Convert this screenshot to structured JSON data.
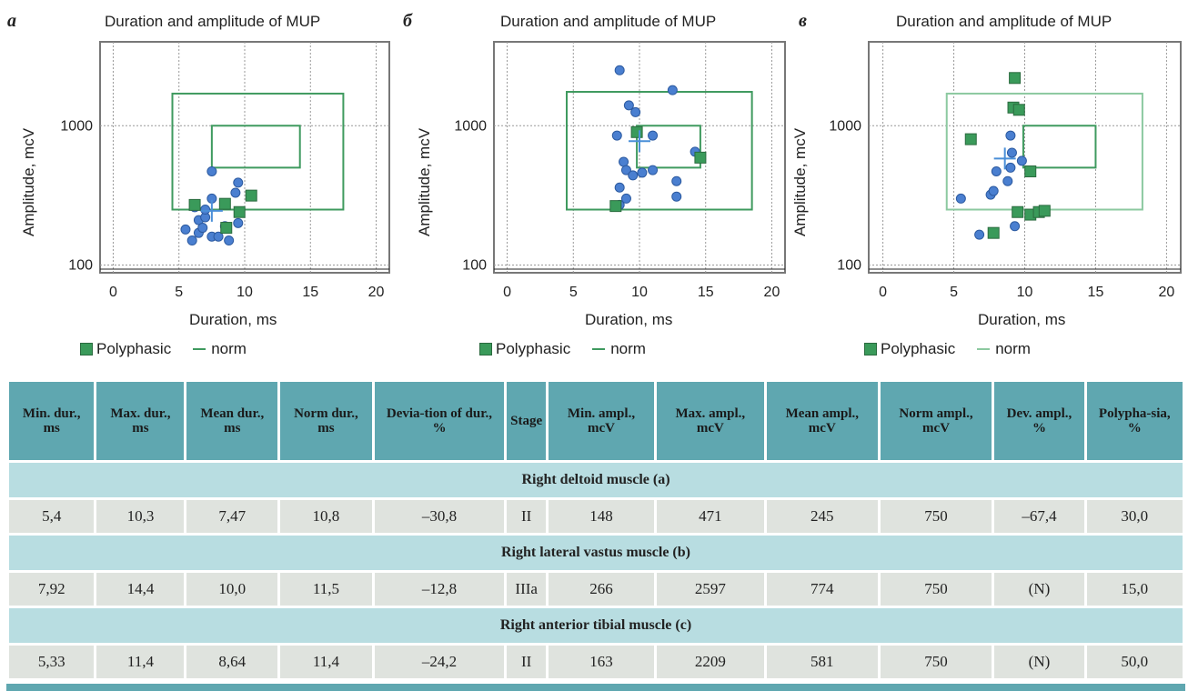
{
  "chart_data": [
    {
      "type": "scatter",
      "letter": "a",
      "title": "Duration and amplitude of MUP",
      "xlabel": "Duration, ms",
      "ylabel": "Amplitude, mcV",
      "x_ticks": [
        "0",
        "5",
        "10",
        "15",
        "20"
      ],
      "y_ticks": [
        "1000",
        "100"
      ],
      "xlim": [
        -1,
        21
      ],
      "ylim": [
        88,
        4000
      ],
      "y_scale": "log",
      "outer_norm": {
        "x": [
          4.5,
          17.5
        ],
        "y": [
          250,
          1700
        ]
      },
      "inner_norm": {
        "x": [
          7.5,
          14.2
        ],
        "y": [
          500,
          1000
        ]
      },
      "mean": {
        "x": 7.5,
        "y": 245
      },
      "points": [
        [
          5.5,
          180
        ],
        [
          6.0,
          150
        ],
        [
          6.5,
          170
        ],
        [
          6.5,
          210
        ],
        [
          6.8,
          185
        ],
        [
          7.0,
          220
        ],
        [
          7.5,
          160
        ],
        [
          8.0,
          160
        ],
        [
          8.5,
          190
        ],
        [
          8.8,
          150
        ],
        [
          7.0,
          250
        ],
        [
          7.5,
          300
        ],
        [
          6.2,
          260
        ],
        [
          9.3,
          330
        ],
        [
          9.5,
          390
        ],
        [
          7.5,
          470
        ],
        [
          9.5,
          200
        ]
      ],
      "polyphasic": [
        [
          6.2,
          270
        ],
        [
          8.5,
          275
        ],
        [
          8.6,
          185
        ],
        [
          9.6,
          240
        ],
        [
          10.5,
          315
        ]
      ],
      "legend": {
        "polyphasic": "Polyphasic",
        "norm": "norm"
      }
    },
    {
      "type": "scatter",
      "letter": "б",
      "title": "Duration and amplitude of MUP",
      "xlabel": "Duration, ms",
      "ylabel": "Amplitude, mcV",
      "x_ticks": [
        "0",
        "5",
        "10",
        "15",
        "20"
      ],
      "y_ticks": [
        "1000",
        "100"
      ],
      "xlim": [
        -1,
        21
      ],
      "ylim": [
        88,
        4000
      ],
      "y_scale": "log",
      "outer_norm": {
        "x": [
          4.5,
          18.5
        ],
        "y": [
          250,
          1750
        ]
      },
      "inner_norm": {
        "x": [
          9.8,
          14.6
        ],
        "y": [
          500,
          1000
        ]
      },
      "mean": {
        "x": 10.0,
        "y": 774
      },
      "points": [
        [
          8.5,
          2500
        ],
        [
          12.5,
          1800
        ],
        [
          9.2,
          1400
        ],
        [
          9.7,
          1250
        ],
        [
          8.3,
          850
        ],
        [
          11.0,
          850
        ],
        [
          8.8,
          550
        ],
        [
          9.0,
          480
        ],
        [
          9.5,
          440
        ],
        [
          10.2,
          460
        ],
        [
          8.5,
          360
        ],
        [
          9.0,
          300
        ],
        [
          12.8,
          400
        ],
        [
          12.8,
          310
        ],
        [
          14.2,
          650
        ],
        [
          8.5,
          270
        ],
        [
          11.0,
          480
        ]
      ],
      "polyphasic": [
        [
          9.8,
          900
        ],
        [
          14.6,
          590
        ],
        [
          8.2,
          265
        ]
      ],
      "legend": {
        "polyphasic": "Polyphasic",
        "norm": "norm"
      }
    },
    {
      "type": "scatter",
      "letter": "в",
      "title": "Duration and amplitude of MUP",
      "xlabel": "Duration, ms",
      "ylabel": "Amplitude, mcV",
      "x_ticks": [
        "0",
        "5",
        "10",
        "15",
        "20"
      ],
      "y_ticks": [
        "1000",
        "100"
      ],
      "xlim": [
        -1,
        21
      ],
      "ylim": [
        88,
        4000
      ],
      "y_scale": "log",
      "outer_norm": {
        "x": [
          4.5,
          18.3
        ],
        "y": [
          250,
          1700
        ]
      },
      "inner_norm": {
        "x": [
          9.9,
          15.0
        ],
        "y": [
          500,
          1000
        ]
      },
      "mean": {
        "x": 8.6,
        "y": 581
      },
      "points": [
        [
          5.5,
          300
        ],
        [
          6.8,
          165
        ],
        [
          7.6,
          320
        ],
        [
          7.8,
          340
        ],
        [
          8.0,
          470
        ],
        [
          8.8,
          400
        ],
        [
          9.0,
          850
        ],
        [
          9.1,
          640
        ],
        [
          9.0,
          500
        ],
        [
          9.8,
          560
        ],
        [
          9.3,
          190
        ]
      ],
      "polyphasic": [
        [
          9.3,
          2200
        ],
        [
          9.2,
          1350
        ],
        [
          9.6,
          1300
        ],
        [
          6.2,
          800
        ],
        [
          10.4,
          470
        ],
        [
          9.5,
          240
        ],
        [
          10.4,
          230
        ],
        [
          11.0,
          240
        ],
        [
          11.4,
          245
        ],
        [
          7.8,
          170
        ]
      ],
      "legend": {
        "polyphasic": "Polyphasic",
        "norm": "norm"
      }
    }
  ],
  "table": {
    "headers": [
      "Min. dur., ms",
      "Max. dur., ms",
      "Mean dur., ms",
      "Norm dur., ms",
      "Devia-tion of dur., %",
      "Stage",
      "Min. ampl., mcV",
      "Max. ampl., mcV",
      "Mean ampl., mcV",
      "Norm ampl., mcV",
      "Dev. ampl., %",
      "Polypha-sia, %"
    ],
    "sections": [
      {
        "title": "Right deltoid muscle (a)",
        "row": [
          "5,4",
          "10,3",
          "7,47",
          "10,8",
          "–30,8",
          "II",
          "148",
          "471",
          "245",
          "750",
          "–67,4",
          "30,0"
        ]
      },
      {
        "title": "Right lateral vastus muscle (b)",
        "row": [
          "7,92",
          "14,4",
          "10,0",
          "11,5",
          "–12,8",
          "IIIa",
          "266",
          "2597",
          "774",
          "750",
          "(N)",
          "15,0"
        ]
      },
      {
        "title": "Right anterior tibial muscle (c)",
        "row": [
          "5,33",
          "11,4",
          "8,64",
          "11,4",
          "–24,2",
          "II",
          "163",
          "2209",
          "581",
          "750",
          "(N)",
          "50,0"
        ]
      }
    ]
  },
  "colors": {
    "point": "#4a7fd0",
    "polyphasic": "#3a9a5a",
    "norm_outer": "#3f9a5f",
    "norm_inner": "#3f9a5f",
    "mean_cross": "#4a8fd8",
    "header_bg": "#5fa7b0",
    "section_bg": "#b8dde1",
    "cell_bg": "#dfe3de"
  }
}
